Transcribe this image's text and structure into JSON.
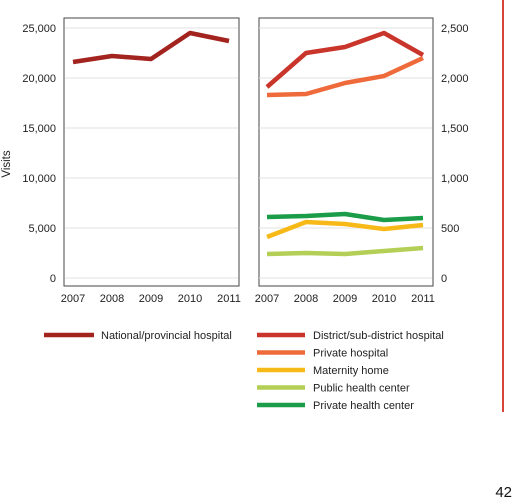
{
  "page_number": "42",
  "chart_data": [
    {
      "type": "line",
      "ylabel": "Visits",
      "x": [
        2007,
        2008,
        2009,
        2010,
        2011
      ],
      "ylim": [
        0,
        25000
      ],
      "yticks": [
        "0",
        "5,000",
        "10,000",
        "15,000",
        "20,000",
        "25,000"
      ],
      "ytick_values": [
        0,
        5000,
        10000,
        15000,
        20000,
        25000
      ],
      "y_axis_side": "left",
      "grid": true,
      "series": [
        {
          "name": "National/provincial hospital",
          "color": "#a3231f",
          "values": [
            21600,
            22200,
            21900,
            24500,
            23700
          ]
        }
      ]
    },
    {
      "type": "line",
      "x": [
        2007,
        2008,
        2009,
        2010,
        2011
      ],
      "ylim": [
        0,
        2500
      ],
      "yticks": [
        "0",
        "500",
        "1,000",
        "1,500",
        "2,000",
        "2,500"
      ],
      "ytick_values": [
        0,
        500,
        1000,
        1500,
        2000,
        2500
      ],
      "y_axis_side": "right",
      "grid": true,
      "series": [
        {
          "name": "District/sub-district hospital",
          "color": "#c9352a",
          "values": [
            1910,
            2250,
            2310,
            2450,
            2230
          ]
        },
        {
          "name": "Private hospital",
          "color": "#ee6a3a",
          "values": [
            1830,
            1840,
            1950,
            2020,
            2200
          ]
        },
        {
          "name": "Maternity home",
          "color": "#f7b918",
          "values": [
            410,
            560,
            540,
            490,
            530
          ]
        },
        {
          "name": "Public health center",
          "color": "#b3cf56",
          "values": [
            240,
            250,
            240,
            270,
            300
          ]
        },
        {
          "name": "Private health center",
          "color": "#1a9c48",
          "values": [
            610,
            620,
            640,
            580,
            600
          ]
        }
      ]
    }
  ],
  "legend_left": [
    "National/provincial hospital"
  ],
  "legend_right": [
    "District/sub-district hospital",
    "Private hospital",
    "Maternity home",
    "Public health center",
    "Private health center"
  ]
}
